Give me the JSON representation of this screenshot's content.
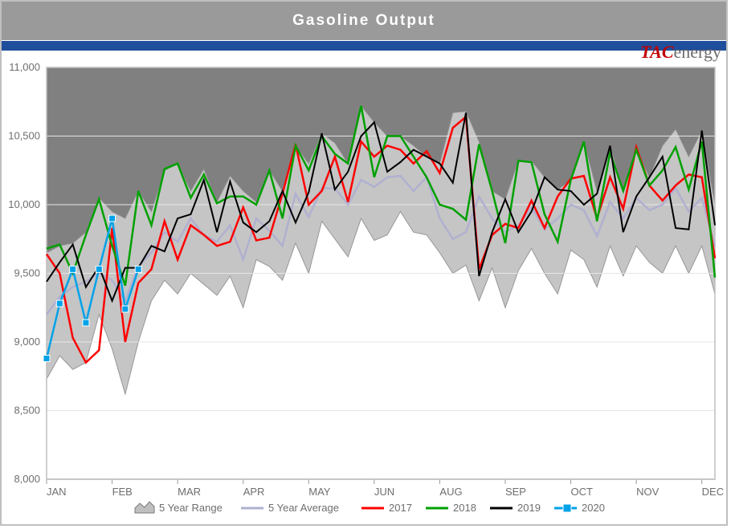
{
  "title": "Gasoline Output",
  "brand": {
    "red": "TAC",
    "gray": "energy"
  },
  "chart": {
    "type": "line",
    "background_color": "#ffffff",
    "plot_bg_top": "#808080",
    "plot_bg_bottom": "#ffffff",
    "accent_bar_color": "#1f4e9c",
    "title_bar_color": "#9a9a9a",
    "title_color": "#ffffff",
    "title_fontsize": 19,
    "label_fontsize": 13,
    "ylim": [
      8000,
      11000
    ],
    "ytick_step": 500,
    "yticks": [
      "8,000",
      "8,500",
      "9,000",
      "9,500",
      "10,000",
      "10,500",
      "11,000"
    ],
    "xticks": [
      "JAN",
      "FEB",
      "MAR",
      "APR",
      "MAY",
      "JUN",
      "AUG",
      "SEP",
      "OCT",
      "NOV",
      "DEC"
    ],
    "xtick_weeks": [
      1,
      6,
      11,
      16,
      21,
      26,
      31,
      36,
      41,
      46,
      51
    ],
    "weeks_total": 52,
    "grid_color": "#e6e6e6",
    "axis_color": "#bfbfbf",
    "legend": {
      "items": [
        "5 Year Range",
        "5 Year Average",
        "2017",
        "2018",
        "2019",
        "2020"
      ],
      "colors": [
        "#bfbfbf",
        "#b0b0d0",
        "#ff0000",
        "#00a000",
        "#000000",
        "#00a2e8"
      ],
      "markers": [
        "area",
        "line",
        "line",
        "line",
        "line",
        "line-square"
      ]
    },
    "series": {
      "range_high": [
        9650,
        9700,
        9720,
        9800,
        10050,
        9950,
        9900,
        10100,
        9950,
        10250,
        10300,
        10100,
        10260,
        10020,
        10210,
        10100,
        10020,
        10250,
        10100,
        10430,
        10300,
        10520,
        10450,
        10300,
        10720,
        10600,
        10500,
        10500,
        10430,
        10350,
        10300,
        10670,
        10680,
        10460,
        10100,
        10040,
        10320,
        10320,
        10200,
        10110,
        10180,
        10460,
        10100,
        10430,
        10100,
        10400,
        10200,
        10430,
        10550,
        10350,
        10540,
        10000
      ],
      "range_low": [
        8730,
        8900,
        8800,
        8850,
        9200,
        8950,
        8620,
        9000,
        9300,
        9450,
        9350,
        9500,
        9420,
        9340,
        9480,
        9250,
        9600,
        9550,
        9450,
        9720,
        9500,
        9880,
        9750,
        9620,
        9900,
        9740,
        9780,
        9950,
        9800,
        9780,
        9650,
        9500,
        9560,
        9300,
        9540,
        9250,
        9520,
        9680,
        9500,
        9350,
        9670,
        9600,
        9400,
        9700,
        9480,
        9700,
        9580,
        9500,
        9700,
        9500,
        9700,
        9350
      ],
      "avg": [
        9200,
        9330,
        9400,
        9440,
        9500,
        9450,
        9300,
        9550,
        9650,
        9800,
        9730,
        9900,
        9780,
        9730,
        9850,
        9600,
        9900,
        9810,
        9700,
        10080,
        9910,
        10120,
        10120,
        10000,
        10180,
        10130,
        10200,
        10210,
        10100,
        10200,
        9900,
        9750,
        9800,
        10060,
        9900,
        9800,
        9850,
        9980,
        9820,
        9900,
        10000,
        9960,
        9770,
        10020,
        9900,
        10050,
        9960,
        10000,
        10120,
        9950,
        10050,
        9700
      ],
      "y2017": [
        9640,
        9500,
        9030,
        8850,
        8940,
        9830,
        9000,
        9430,
        9530,
        9880,
        9600,
        9850,
        9780,
        9700,
        9730,
        9980,
        9740,
        9760,
        10080,
        10440,
        10000,
        10100,
        10350,
        10020,
        10460,
        10350,
        10430,
        10400,
        10300,
        10390,
        10230,
        10560,
        10640,
        9530,
        9780,
        9860,
        9830,
        10030,
        9830,
        10060,
        10190,
        10210,
        9900,
        10200,
        9970,
        10420,
        10140,
        10030,
        10140,
        10220,
        10200,
        9610
      ],
      "y2018": [
        9680,
        9710,
        9500,
        9780,
        10040,
        9700,
        9410,
        10100,
        9850,
        10260,
        10300,
        10050,
        10220,
        10010,
        10060,
        10060,
        10000,
        10250,
        9900,
        10430,
        10250,
        10500,
        10370,
        10300,
        10720,
        10200,
        10500,
        10500,
        10350,
        10200,
        10000,
        9970,
        9890,
        10440,
        10100,
        9720,
        10320,
        10310,
        9930,
        9730,
        10180,
        10460,
        9880,
        10380,
        10100,
        10400,
        10140,
        10250,
        10420,
        10110,
        10460,
        9470
      ],
      "y2019": [
        9440,
        9580,
        9710,
        9400,
        9550,
        9300,
        9540,
        9540,
        9700,
        9660,
        9900,
        9930,
        10180,
        9800,
        10170,
        9870,
        9800,
        9880,
        10100,
        9870,
        10090,
        10520,
        10110,
        10240,
        10500,
        10600,
        10240,
        10310,
        10400,
        10350,
        10300,
        10160,
        10670,
        9480,
        9800,
        10040,
        9800,
        9950,
        10200,
        10110,
        10100,
        10000,
        10080,
        10430,
        9800,
        10060,
        10200,
        10350,
        9830,
        9820,
        10540,
        9850
      ],
      "y2020": [
        8880,
        9280,
        9530,
        9140,
        9530,
        9900,
        9240,
        9530
      ]
    },
    "styles": {
      "range": {
        "fill": "#bfbfbf",
        "stroke": "#8c8c8c",
        "opacity": 0.9
      },
      "avg": {
        "stroke": "#b0b0d0",
        "width": 2.5
      },
      "y2017": {
        "stroke": "#ff0000",
        "width": 2.5
      },
      "y2018": {
        "stroke": "#00a000",
        "width": 2.5
      },
      "y2019": {
        "stroke": "#000000",
        "width": 2.0
      },
      "y2020": {
        "stroke": "#00a2e8",
        "width": 2.5,
        "marker": "square",
        "marker_size": 8,
        "marker_fill": "#00a2e8"
      }
    }
  }
}
